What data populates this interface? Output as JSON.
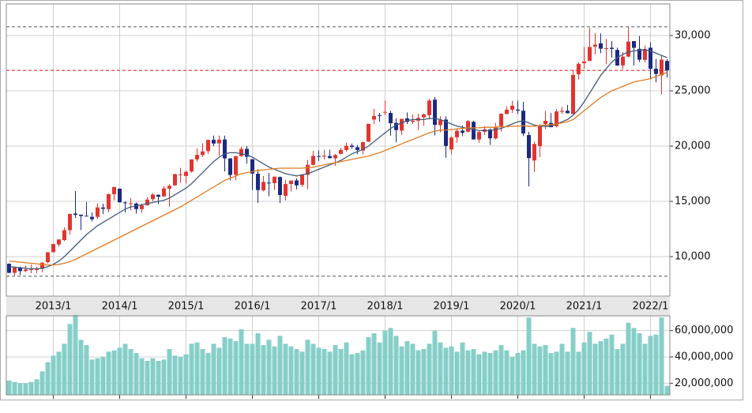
{
  "chart_data": [
    {
      "type": "candlestick",
      "categories": [
        null,
        null,
        null,
        null,
        null,
        null,
        null,
        null,
        "2013/1",
        null,
        null,
        null,
        null,
        null,
        null,
        null,
        null,
        null,
        null,
        null,
        "2014/1",
        null,
        null,
        null,
        null,
        null,
        null,
        null,
        null,
        null,
        null,
        null,
        "2015/1",
        null,
        null,
        null,
        null,
        null,
        null,
        null,
        null,
        null,
        null,
        null,
        "2016/1",
        null,
        null,
        null,
        null,
        null,
        null,
        null,
        null,
        null,
        null,
        null,
        "2017/1",
        null,
        null,
        null,
        null,
        null,
        null,
        null,
        null,
        null,
        null,
        null,
        "2018/1",
        null,
        null,
        null,
        null,
        null,
        null,
        null,
        null,
        null,
        null,
        null,
        "2019/1",
        null,
        null,
        null,
        null,
        null,
        null,
        null,
        null,
        null,
        null,
        null,
        "2020/1",
        null,
        null,
        null,
        null,
        null,
        null,
        null,
        null,
        null,
        null,
        null,
        "2021/1",
        null,
        null,
        null,
        null,
        null,
        null,
        null,
        null,
        null,
        null,
        null,
        "2022/1",
        null,
        null,
        null
      ],
      "open": [
        9350,
        8530,
        9000,
        8700,
        8800,
        8800,
        8900,
        9500,
        10400,
        11100,
        11500,
        12400,
        13900,
        13800,
        13700,
        13600,
        13600,
        14450,
        14300,
        15650,
        16150,
        14900,
        14800,
        14800,
        14300,
        14650,
        15200,
        15600,
        15450,
        16150,
        16450,
        17450,
        17300,
        17700,
        18800,
        19200,
        19550,
        20570,
        20250,
        20600,
        18890,
        17400,
        19100,
        19750,
        18820,
        17500,
        16000,
        16700,
        16650,
        17200,
        15500,
        16570,
        16900,
        16500,
        17400,
        18300,
        19100,
        19050,
        19100,
        18900,
        19300,
        19650,
        20050,
        19900,
        19600,
        20400,
        22400,
        22800,
        23070,
        23000,
        22100,
        21400,
        22500,
        22200,
        22300,
        22600,
        22800,
        24200,
        21900,
        22400,
        19700,
        20800,
        21400,
        21300,
        22200,
        20600,
        21300,
        21500,
        20700,
        21800,
        22900,
        23300,
        23300,
        23200,
        21000,
        18700,
        20000,
        22000,
        22100,
        21800,
        23100,
        23200,
        22900,
        26500,
        27500,
        27700,
        29000,
        29300,
        28800,
        28900,
        28700,
        27300,
        28100,
        29500,
        28800,
        27800,
        28900,
        27000,
        26400,
        27700
      ],
      "high": [
        9400,
        9050,
        9100,
        9200,
        9300,
        9100,
        9500,
        10400,
        11200,
        11500,
        12650,
        13900,
        15940,
        13800,
        14950,
        14000,
        14820,
        14800,
        15700,
        16320,
        16160,
        15000,
        15300,
        14900,
        14800,
        15380,
        15760,
        15600,
        16380,
        16550,
        17520,
        18030,
        17800,
        18800,
        19780,
        20250,
        20570,
        20950,
        20950,
        20950,
        18900,
        19120,
        19940,
        20010,
        18820,
        17900,
        17290,
        17570,
        17250,
        17250,
        16950,
        16800,
        17100,
        17430,
        18750,
        19590,
        19620,
        19670,
        19670,
        19290,
        19860,
        20320,
        20230,
        20100,
        20400,
        22010,
        23380,
        23000,
        24130,
        23200,
        22500,
        22470,
        23050,
        22880,
        22950,
        22950,
        24290,
        24450,
        22700,
        22700,
        20870,
        21600,
        21860,
        22360,
        22300,
        21400,
        21800,
        21600,
        22100,
        22970,
        23600,
        24090,
        24120,
        24000,
        21300,
        20400,
        22000,
        23180,
        23000,
        23340,
        23560,
        23730,
        26830,
        27600,
        28980,
        30700,
        30200,
        30200,
        29700,
        29500,
        28900,
        28500,
        30795,
        29500,
        29960,
        29100,
        29390,
        27880,
        28250,
        27860
      ],
      "low": [
        8500,
        8240,
        8330,
        8600,
        8500,
        8500,
        8600,
        9400,
        10400,
        10900,
        11400,
        12000,
        13500,
        12400,
        13700,
        13200,
        13400,
        13850,
        14000,
        15100,
        14900,
        13990,
        14200,
        13890,
        13960,
        14620,
        15000,
        14750,
        15400,
        14530,
        16400,
        16670,
        16600,
        17600,
        18600,
        19000,
        19300,
        19990,
        19120,
        17710,
        16900,
        16900,
        19000,
        18410,
        16020,
        14870,
        15900,
        15470,
        16040,
        14860,
        15090,
        15900,
        16100,
        16300,
        16110,
        18250,
        18650,
        18800,
        18900,
        18220,
        19250,
        19500,
        19770,
        19250,
        19240,
        20390,
        21970,
        22200,
        22780,
        20950,
        20350,
        21000,
        22000,
        22000,
        21460,
        21850,
        22400,
        20970,
        21240,
        18950,
        19240,
        20300,
        20900,
        21200,
        20750,
        20300,
        21000,
        20110,
        20600,
        21300,
        22900,
        23000,
        22900,
        20900,
        16360,
        17650,
        19000,
        21530,
        21710,
        21700,
        22900,
        22950,
        22940,
        26040,
        27000,
        27800,
        28300,
        28400,
        27400,
        28000,
        27270,
        26950,
        28050,
        27290,
        27600,
        27580,
        26040,
        25770,
        24680,
        26200
      ],
      "close": [
        8540,
        9006,
        8695,
        8840,
        8870,
        8930,
        9450,
        10395,
        11138,
        11559,
        12397,
        13860,
        13774,
        13677,
        13668,
        13388,
        14455,
        14327,
        15662,
        16291,
        14915,
        14841,
        14828,
        14304,
        14632,
        15162,
        15621,
        15425,
        16173,
        16414,
        17460,
        17451,
        17674,
        18798,
        19207,
        19520,
        20563,
        20236,
        20585,
        18890,
        17388,
        19083,
        19747,
        19034,
        17518,
        16027,
        16759,
        16666,
        17235,
        15576,
        16569,
        16887,
        16450,
        17425,
        18308,
        19114,
        19041,
        19119,
        18909,
        19197,
        19651,
        20033,
        19925,
        19646,
        20356,
        22011,
        22725,
        22764,
        23098,
        22068,
        21454,
        22467,
        22202,
        22305,
        22553,
        22865,
        24120,
        21920,
        22351,
        20014,
        20773,
        21385,
        21206,
        22259,
        20601,
        21276,
        21522,
        20704,
        21756,
        22927,
        23294,
        23657,
        23205,
        21143,
        18917,
        20194,
        21878,
        22288,
        21710,
        23140,
        23185,
        22977,
        26434,
        27444,
        27663,
        28966,
        29179,
        28813,
        28860,
        28792,
        27284,
        28090,
        29453,
        28893,
        27822,
        28792,
        27002,
        26527,
        27821,
        26848
      ],
      "up_color": "#e0352f",
      "down_color": "#1b2a80",
      "lines": [
        {
          "color": "#3e5b7c",
          "values": [
            9100,
            9050,
            9000,
            8950,
            8900,
            8900,
            8950,
            9100,
            9300,
            9600,
            10000,
            10500,
            11000,
            11500,
            12000,
            12400,
            12800,
            13100,
            13400,
            13700,
            14000,
            14300,
            14500,
            14600,
            14700,
            14800,
            14900,
            15000,
            15100,
            15300,
            15600,
            15900,
            16200,
            16600,
            17100,
            17600,
            18100,
            18600,
            19000,
            19300,
            19400,
            19400,
            19300,
            19200,
            19000,
            18700,
            18400,
            18100,
            17900,
            17700,
            17500,
            17400,
            17300,
            17400,
            17500,
            17700,
            17900,
            18100,
            18300,
            18500,
            18700,
            19000,
            19300,
            19500,
            19700,
            20000,
            20400,
            20800,
            21200,
            21600,
            21900,
            22100,
            22300,
            22400,
            22400,
            22400,
            22500,
            22500,
            22400,
            22200,
            22000,
            21800,
            21700,
            21600,
            21500,
            21400,
            21400,
            21400,
            21500,
            21600,
            21800,
            22000,
            22200,
            22300,
            22100,
            21900,
            21800,
            21800,
            21800,
            22000,
            22200,
            22400,
            22800,
            23300,
            24000,
            24800,
            25600,
            26400,
            27000,
            27600,
            28000,
            28300,
            28500,
            28600,
            28700,
            28700,
            28600,
            28400,
            28200,
            28000
          ]
        },
        {
          "color": "#e07b22",
          "values": [
            9600,
            9550,
            9500,
            9450,
            9400,
            9350,
            9300,
            9250,
            9250,
            9300,
            9400,
            9550,
            9750,
            10000,
            10250,
            10500,
            10750,
            11000,
            11250,
            11500,
            11750,
            12000,
            12250,
            12500,
            12750,
            13000,
            13250,
            13500,
            13750,
            14000,
            14250,
            14500,
            14800,
            15100,
            15400,
            15700,
            16000,
            16300,
            16600,
            16900,
            17100,
            17300,
            17500,
            17600,
            17700,
            17800,
            17850,
            17900,
            17950,
            18000,
            18000,
            18000,
            18000,
            18000,
            18050,
            18100,
            18200,
            18300,
            18400,
            18500,
            18600,
            18700,
            18800,
            18900,
            19000,
            19100,
            19250,
            19400,
            19600,
            19800,
            20000,
            20200,
            20400,
            20600,
            20800,
            21000,
            21200,
            21350,
            21450,
            21450,
            21500,
            21550,
            21600,
            21650,
            21650,
            21650,
            21700,
            21700,
            21700,
            21750,
            21750,
            21800,
            21800,
            21850,
            21800,
            21800,
            21850,
            21900,
            21950,
            22000,
            22100,
            22200,
            22400,
            22800,
            23200,
            23600,
            24000,
            24400,
            24700,
            25000,
            25200,
            25400,
            25600,
            25800,
            25900,
            26000,
            26100,
            26300,
            26500,
            26650
          ]
        }
      ],
      "hlines": [
        {
          "value": 30795,
          "color": "#555555"
        },
        {
          "value": 8238,
          "color": "#555555"
        },
        {
          "value": 26848,
          "color": "#e01010"
        }
      ],
      "ylim": [
        6430,
        32860
      ],
      "yticks": [
        {
          "value": 10000,
          "label": "10,000"
        },
        {
          "value": 15000,
          "label": "15,000"
        },
        {
          "value": 20000,
          "label": "20,000"
        },
        {
          "value": 25000,
          "label": "25,000"
        },
        {
          "value": 30000,
          "label": "30,000"
        }
      ],
      "grid": true
    },
    {
      "type": "bar",
      "values": [
        22000000.0,
        21000000.0,
        20000000.0,
        20000000.0,
        21000000.0,
        23000000.0,
        29000000.0,
        36000000.0,
        41000000.0,
        44000000.0,
        50000000.0,
        65000000.0,
        72000000.0,
        53000000.0,
        49000000.0,
        38000000.0,
        39000000.0,
        40000000.0,
        44000000.0,
        45000000.0,
        47000000.0,
        50000000.0,
        46000000.0,
        43000000.0,
        39000000.0,
        37000000.0,
        39000000.0,
        37000000.0,
        38000000.0,
        46000000.0,
        41000000.0,
        40000000.0,
        42000000.0,
        50000000.0,
        51000000.0,
        46000000.0,
        43000000.0,
        50000000.0,
        47000000.0,
        55000000.0,
        54000000.0,
        52000000.0,
        61000000.0,
        50000000.0,
        50000000.0,
        58000000.0,
        49000000.0,
        53000000.0,
        48000000.0,
        56000000.0,
        50000000.0,
        48000000.0,
        46000000.0,
        44000000.0,
        53000000.0,
        50000000.0,
        47000000.0,
        46000000.0,
        44000000.0,
        49000000.0,
        46000000.0,
        51000000.0,
        42000000.0,
        43000000.0,
        45000000.0,
        55000000.0,
        58000000.0,
        51000000.0,
        60000000.0,
        62000000.0,
        56000000.0,
        48000000.0,
        52000000.0,
        50000000.0,
        45000000.0,
        46000000.0,
        50000000.0,
        60000000.0,
        51000000.0,
        47000000.0,
        48000000.0,
        44000000.0,
        51000000.0,
        45000000.0,
        46000000.0,
        42000000.0,
        44000000.0,
        43000000.0,
        45000000.0,
        49000000.0,
        45000000.0,
        40000000.0,
        43000000.0,
        45000000.0,
        70000000.0,
        50000000.0,
        48000000.0,
        49000000.0,
        43000000.0,
        44000000.0,
        50000000.0,
        44000000.0,
        62000000.0,
        44000000.0,
        51000000.0,
        59000000.0,
        50000000.0,
        52000000.0,
        54000000.0,
        57000000.0,
        46000000.0,
        50000000.0,
        66000000.0,
        62000000.0,
        58000000.0,
        50000000.0,
        56000000.0,
        57000000.0,
        70000000.0,
        18000000.0
      ],
      "color": "#86cfc8",
      "ylim": [
        11200000,
        71200000
      ],
      "yticks": [
        {
          "value": 20000000,
          "label": "20,000,000"
        },
        {
          "value": 40000000,
          "label": "40,000,000"
        },
        {
          "value": 60000000,
          "label": "60,000,000"
        }
      ],
      "grid": true
    }
  ]
}
